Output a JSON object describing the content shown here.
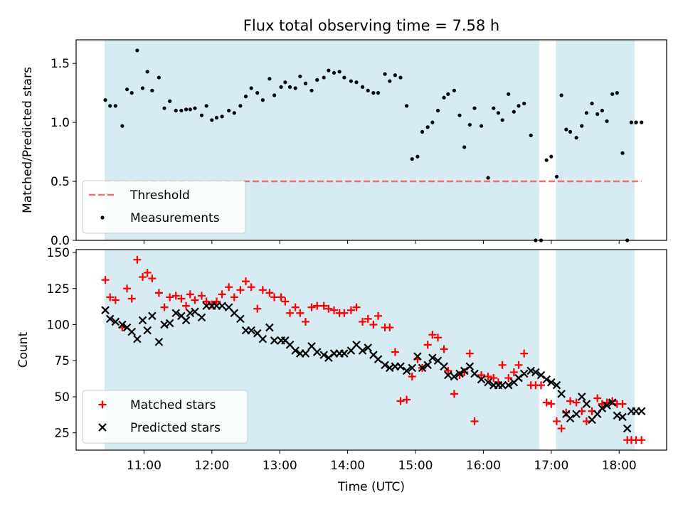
{
  "figure_title": "Flux total observing time = 7.58 h",
  "colors": {
    "observing_band": "#add8e6",
    "threshold": "#f07070",
    "measurements": "#000000",
    "matched": "#ff0000",
    "predicted": "#000000"
  },
  "x_axis": {
    "label": "Time (UTC)",
    "ticks": [
      11,
      12,
      13,
      14,
      15,
      16,
      17,
      18
    ],
    "tick_labels": [
      "11:00",
      "12:00",
      "13:00",
      "14:00",
      "15:00",
      "16:00",
      "17:00",
      "18:00"
    ]
  },
  "observing_windows": [
    [
      10.42,
      16.82
    ],
    [
      17.07,
      18.23
    ]
  ],
  "chart_data": [
    {
      "type": "scatter",
      "ylabel": "Matched/Predicted stars",
      "xlim": [
        10.0,
        18.7
      ],
      "ylim": [
        0,
        1.7
      ],
      "yticks": [
        0.0,
        0.5,
        1.0,
        1.5
      ],
      "ytick_labels": [
        "0.0",
        "0.5",
        "1.0",
        "1.5"
      ],
      "legend_position": "lower-left",
      "threshold": {
        "name": "Threshold",
        "value": 0.5,
        "x_range": [
          10.42,
          18.33
        ]
      },
      "series": [
        {
          "name": "Measurements",
          "x": [
            10.43,
            10.5,
            10.58,
            10.68,
            10.75,
            10.82,
            10.9,
            10.98,
            11.05,
            11.12,
            11.22,
            11.3,
            11.38,
            11.47,
            11.55,
            11.62,
            11.68,
            11.75,
            11.85,
            11.92,
            12.0,
            12.07,
            12.15,
            12.25,
            12.33,
            12.42,
            12.5,
            12.58,
            12.67,
            12.75,
            12.85,
            12.92,
            13.02,
            13.08,
            13.15,
            13.23,
            13.3,
            13.38,
            13.47,
            13.55,
            13.65,
            13.72,
            13.8,
            13.88,
            13.95,
            14.05,
            14.13,
            14.22,
            14.3,
            14.38,
            14.45,
            14.55,
            14.62,
            14.7,
            14.78,
            14.87,
            14.95,
            15.03,
            15.1,
            15.18,
            15.25,
            15.33,
            15.42,
            15.48,
            15.57,
            15.65,
            15.72,
            15.8,
            15.87,
            15.97,
            16.07,
            16.15,
            16.22,
            16.28,
            16.37,
            16.45,
            16.52,
            16.6,
            16.7,
            16.77,
            16.85,
            16.93,
            17.0,
            17.08,
            17.15,
            17.22,
            17.28,
            17.37,
            17.45,
            17.52,
            17.6,
            17.68,
            17.75,
            17.82,
            17.9,
            17.97,
            18.05,
            18.12,
            18.18,
            18.25,
            18.33
          ],
          "y": [
            1.19,
            1.14,
            1.14,
            0.97,
            1.28,
            1.25,
            1.61,
            1.29,
            1.43,
            1.27,
            1.38,
            1.12,
            1.18,
            1.1,
            1.1,
            1.11,
            1.11,
            1.12,
            1.06,
            1.14,
            1.02,
            1.04,
            1.05,
            1.1,
            1.08,
            1.14,
            1.22,
            1.29,
            1.25,
            1.19,
            1.37,
            1.23,
            1.3,
            1.34,
            1.3,
            1.29,
            1.39,
            1.33,
            1.27,
            1.36,
            1.38,
            1.44,
            1.42,
            1.43,
            1.38,
            1.35,
            1.34,
            1.3,
            1.27,
            1.25,
            1.25,
            1.41,
            1.35,
            1.4,
            1.38,
            1.14,
            0.69,
            0.71,
            0.92,
            0.96,
            1.0,
            1.1,
            1.21,
            1.24,
            1.27,
            1.06,
            0.79,
            0.98,
            1.12,
            0.97,
            0.53,
            1.12,
            1.08,
            1.02,
            1.24,
            1.09,
            1.14,
            1.16,
            0.89,
            0.0,
            0.0,
            0.68,
            0.71,
            0.54,
            1.23,
            0.94,
            0.92,
            0.87,
            0.97,
            1.08,
            1.16,
            1.07,
            1.1,
            1.01,
            1.24,
            1.25,
            0.74,
            0.0,
            1.0,
            1.0,
            1.0
          ]
        }
      ]
    },
    {
      "type": "scatter",
      "xlabel": "Time (UTC)",
      "ylabel": "Count",
      "xlim": [
        10.0,
        18.7
      ],
      "ylim": [
        13,
        152
      ],
      "yticks": [
        25,
        50,
        75,
        100,
        125,
        150
      ],
      "ytick_labels": [
        "25",
        "50",
        "75",
        "100",
        "125",
        "150"
      ],
      "legend_position": "lower-left",
      "series": [
        {
          "name": "Matched stars",
          "marker": "plus",
          "x": [
            10.43,
            10.5,
            10.58,
            10.68,
            10.75,
            10.82,
            10.9,
            10.98,
            11.05,
            11.12,
            11.22,
            11.3,
            11.38,
            11.47,
            11.55,
            11.62,
            11.68,
            11.75,
            11.85,
            11.92,
            12.0,
            12.07,
            12.15,
            12.25,
            12.33,
            12.42,
            12.5,
            12.58,
            12.67,
            12.75,
            12.85,
            12.92,
            13.02,
            13.08,
            13.15,
            13.23,
            13.3,
            13.38,
            13.47,
            13.55,
            13.65,
            13.72,
            13.8,
            13.88,
            13.95,
            14.05,
            14.13,
            14.22,
            14.3,
            14.38,
            14.45,
            14.55,
            14.62,
            14.7,
            14.78,
            14.87,
            14.95,
            15.03,
            15.1,
            15.18,
            15.25,
            15.33,
            15.42,
            15.48,
            15.57,
            15.65,
            15.72,
            15.8,
            15.87,
            15.97,
            16.07,
            16.15,
            16.22,
            16.28,
            16.37,
            16.45,
            16.52,
            16.6,
            16.7,
            16.77,
            16.85,
            16.93,
            17.0,
            17.08,
            17.15,
            17.22,
            17.28,
            17.37,
            17.45,
            17.52,
            17.6,
            17.68,
            17.75,
            17.82,
            17.9,
            17.97,
            18.05,
            18.12,
            18.18,
            18.25,
            18.33
          ],
          "y": [
            131,
            119,
            117,
            98,
            125,
            118,
            145,
            133,
            136,
            132,
            122,
            112,
            119,
            120,
            118,
            113,
            121,
            117,
            120,
            116,
            114,
            116,
            121,
            126,
            119,
            124,
            130,
            126,
            111,
            124,
            122,
            119,
            119,
            116,
            108,
            112,
            108,
            102,
            112,
            113,
            113,
            111,
            110,
            108,
            108,
            110,
            112,
            102,
            104,
            100,
            106,
            98,
            98,
            81,
            47,
            48,
            64,
            76,
            70,
            86,
            93,
            91,
            83,
            68,
            52,
            65,
            67,
            80,
            33,
            65,
            64,
            63,
            60,
            72,
            63,
            67,
            72,
            80,
            58,
            58,
            58,
            46,
            45,
            33,
            28,
            39,
            47,
            46,
            40,
            33,
            40,
            49,
            45,
            46,
            47,
            45,
            45,
            20,
            20,
            20,
            20
          ]
        },
        {
          "name": "Predicted stars",
          "marker": "x",
          "x": [
            10.43,
            10.5,
            10.58,
            10.68,
            10.75,
            10.82,
            10.9,
            10.98,
            11.05,
            11.12,
            11.22,
            11.3,
            11.38,
            11.47,
            11.55,
            11.62,
            11.68,
            11.75,
            11.85,
            11.92,
            12.0,
            12.07,
            12.15,
            12.25,
            12.33,
            12.42,
            12.5,
            12.58,
            12.67,
            12.75,
            12.85,
            12.92,
            13.02,
            13.08,
            13.15,
            13.23,
            13.3,
            13.38,
            13.47,
            13.55,
            13.65,
            13.72,
            13.8,
            13.88,
            13.95,
            14.05,
            14.13,
            14.22,
            14.3,
            14.38,
            14.45,
            14.55,
            14.62,
            14.7,
            14.78,
            14.87,
            14.95,
            15.03,
            15.1,
            15.18,
            15.25,
            15.33,
            15.42,
            15.48,
            15.57,
            15.65,
            15.72,
            15.8,
            15.87,
            15.97,
            16.07,
            16.15,
            16.22,
            16.28,
            16.37,
            16.45,
            16.52,
            16.6,
            16.7,
            16.77,
            16.85,
            16.93,
            17.0,
            17.08,
            17.15,
            17.22,
            17.28,
            17.37,
            17.45,
            17.52,
            17.6,
            17.68,
            17.75,
            17.82,
            17.9,
            17.97,
            18.05,
            18.12,
            18.18,
            18.25,
            18.33
          ],
          "y": [
            110,
            104,
            102,
            100,
            98,
            95,
            90,
            103,
            96,
            106,
            88,
            100,
            101,
            108,
            106,
            103,
            108,
            109,
            105,
            113,
            113,
            113,
            113,
            112,
            108,
            104,
            96,
            96,
            94,
            90,
            98,
            89,
            89,
            89,
            86,
            82,
            80,
            80,
            85,
            81,
            79,
            77,
            80,
            80,
            80,
            82,
            86,
            82,
            84,
            79,
            76,
            72,
            70,
            71,
            71,
            68,
            70,
            78,
            70,
            72,
            77,
            75,
            71,
            65,
            64,
            66,
            68,
            71,
            66,
            62,
            60,
            58,
            58,
            58,
            58,
            60,
            63,
            66,
            68,
            67,
            65,
            62,
            60,
            58,
            52,
            38,
            35,
            38,
            50,
            45,
            34,
            38,
            42,
            44,
            46,
            37,
            36,
            28,
            40,
            40,
            40
          ]
        }
      ]
    }
  ]
}
